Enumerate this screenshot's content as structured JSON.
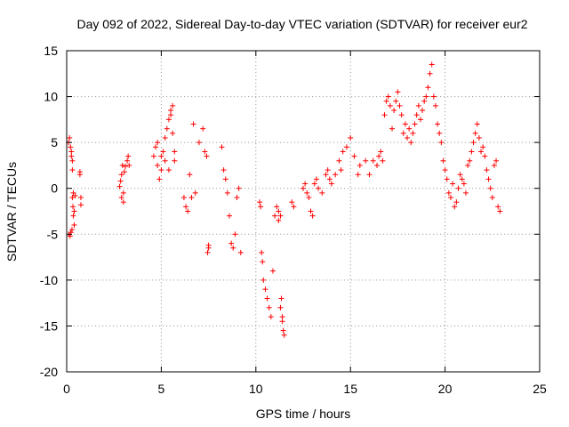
{
  "chart_data": {
    "type": "scatter",
    "title": "Day 092 of 2022, Sidereal Day-to-day VTEC variation (SDTVAR) for receiver eur2",
    "xlabel": "GPS time / hours",
    "ylabel": "SDTVAR / TECUs",
    "xlim": [
      0,
      25
    ],
    "ylim": [
      -20,
      15
    ],
    "xticks": [
      0,
      5,
      10,
      15,
      20,
      25
    ],
    "yticks": [
      -20,
      -15,
      -10,
      -5,
      0,
      5,
      10,
      15
    ],
    "grid": true,
    "marker": "+",
    "color": "#ff0000",
    "series": [
      {
        "name": "SDTVAR",
        "x": [
          0.1,
          0.15,
          0.2,
          0.25,
          0.3,
          0.12,
          0.18,
          0.22,
          0.28,
          0.3,
          0.33,
          0.35,
          0.4,
          0.45,
          0.25,
          0.3,
          0.35,
          0.4,
          0.7,
          0.75,
          0.7,
          0.75,
          2.8,
          2.85,
          2.9,
          2.95,
          3.0,
          2.9,
          3.0,
          3.05,
          3.1,
          3.2,
          3.25,
          3.3,
          4.6,
          4.7,
          4.8,
          4.9,
          5.0,
          5.1,
          5.2,
          5.3,
          5.4,
          5.5,
          5.6,
          5.7,
          4.8,
          5.0,
          5.2,
          5.4,
          5.5,
          5.6,
          5.7,
          6.2,
          6.3,
          6.4,
          6.5,
          6.6,
          6.7,
          6.8,
          7.0,
          7.2,
          7.3,
          7.4,
          7.5,
          7.45,
          7.5,
          8.2,
          8.3,
          8.4,
          8.5,
          8.6,
          8.7,
          8.8,
          8.9,
          9.0,
          9.1,
          9.2,
          10.2,
          10.25,
          10.3,
          10.35,
          10.4,
          10.5,
          10.6,
          10.7,
          10.8,
          10.9,
          11.0,
          11.1,
          11.2,
          11.3,
          11.35,
          11.4,
          11.45,
          11.5,
          11.4,
          11.3,
          11.2,
          11.9,
          12.0,
          12.5,
          12.6,
          12.7,
          12.8,
          12.9,
          13.0,
          13.1,
          13.2,
          13.3,
          13.5,
          13.7,
          13.8,
          13.9,
          14.0,
          14.2,
          14.4,
          14.5,
          14.6,
          14.8,
          15.0,
          15.2,
          15.4,
          15.5,
          15.8,
          16.0,
          16.2,
          16.4,
          16.5,
          16.6,
          16.7,
          16.8,
          16.9,
          17.0,
          17.1,
          17.2,
          17.3,
          17.4,
          17.5,
          17.6,
          17.7,
          17.8,
          17.9,
          18.0,
          18.1,
          18.2,
          18.3,
          18.4,
          18.5,
          18.6,
          18.7,
          18.8,
          18.9,
          19.0,
          19.1,
          19.2,
          19.3,
          19.4,
          19.5,
          19.6,
          19.7,
          19.8,
          19.9,
          20.0,
          20.1,
          20.2,
          20.3,
          20.4,
          20.5,
          20.6,
          20.7,
          20.8,
          20.9,
          21.0,
          21.1,
          21.2,
          21.3,
          21.4,
          21.5,
          21.6,
          21.7,
          21.8,
          21.9,
          22.0,
          22.1,
          22.2,
          22.3,
          22.4,
          22.5,
          22.6,
          22.7,
          22.8,
          22.9
        ],
        "y": [
          5.0,
          5.5,
          4.5,
          4.0,
          3.0,
          -5.0,
          -5.2,
          -4.8,
          -4.5,
          -1.0,
          -2.0,
          -3.0,
          -4.0,
          -0.8,
          3.5,
          2.0,
          -0.5,
          -2.5,
          1.5,
          -1.8,
          1.8,
          -1.0,
          0.2,
          0.8,
          1.5,
          2.5,
          -1.5,
          -1.0,
          -0.5,
          1.8,
          2.4,
          3.0,
          3.5,
          2.5,
          3.5,
          4.5,
          2.5,
          1.0,
          2.0,
          4.0,
          5.5,
          6.5,
          7.5,
          8.5,
          6.0,
          4.0,
          5.0,
          3.5,
          3.0,
          2.0,
          8.0,
          9.0,
          3.0,
          -1.0,
          -2.0,
          -2.5,
          1.5,
          -1.0,
          7.0,
          -0.5,
          5.0,
          6.5,
          4.0,
          3.5,
          -6.5,
          -7.0,
          -6.2,
          4.5,
          2.0,
          1.0,
          -0.5,
          -3.0,
          -6.0,
          -6.5,
          -5.0,
          -1.0,
          0.0,
          -7.0,
          -1.5,
          -2.0,
          -7.0,
          -8.0,
          -10.0,
          -11.0,
          -12.0,
          -13.0,
          -14.0,
          -9.0,
          -3.0,
          -2.0,
          -2.5,
          -3.0,
          -12.0,
          -14.0,
          -15.5,
          -16.0,
          -14.5,
          -13.0,
          -3.5,
          -1.5,
          -2.0,
          0.0,
          0.5,
          -0.5,
          -1.0,
          -2.5,
          -3.0,
          0.5,
          1.0,
          0.0,
          -0.5,
          1.5,
          2.0,
          1.0,
          0.5,
          1.5,
          3.0,
          2.0,
          4.0,
          4.5,
          5.5,
          3.5,
          1.5,
          2.5,
          3.0,
          1.5,
          3.0,
          2.5,
          3.5,
          4.0,
          3.0,
          8.0,
          9.5,
          10.0,
          9.0,
          6.5,
          8.5,
          9.5,
          10.5,
          9.0,
          8.0,
          6.0,
          7.0,
          5.5,
          6.5,
          5.0,
          6.0,
          7.0,
          8.0,
          9.0,
          7.5,
          8.5,
          9.5,
          10.0,
          11.0,
          12.5,
          13.5,
          10.0,
          9.0,
          7.0,
          6.0,
          5.0,
          3.0,
          2.0,
          1.0,
          -0.5,
          -1.0,
          0.5,
          -2.0,
          -1.5,
          0.0,
          1.5,
          1.0,
          0.5,
          -0.5,
          2.5,
          3.0,
          4.0,
          5.0,
          6.0,
          7.0,
          5.5,
          4.0,
          4.5,
          3.5,
          2.0,
          1.0,
          0.0,
          -1.0,
          2.5,
          3.0,
          -2.0,
          -2.5
        ]
      }
    ]
  }
}
